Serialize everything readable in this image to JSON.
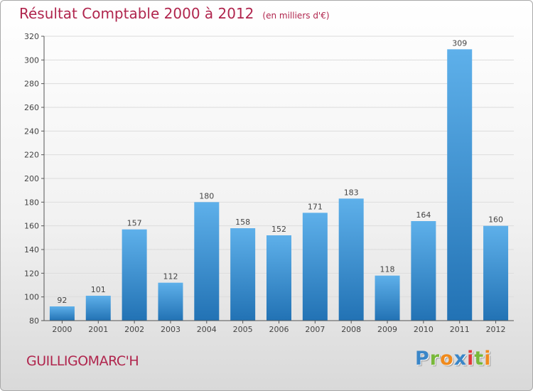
{
  "title": "Résultat Comptable 2000 à 2012",
  "unit_note": "(en milliers d'€)",
  "commune": "GUILLIGOMARC'H",
  "logo": {
    "letters": [
      {
        "ch": "P",
        "color": "#3a86c8"
      },
      {
        "ch": "r",
        "color": "#78b83a"
      },
      {
        "ch": "o",
        "color": "#f08a1c"
      },
      {
        "ch": "x",
        "color": "#3a86c8"
      },
      {
        "ch": "i",
        "color": "#e03a3a"
      },
      {
        "ch": "t",
        "color": "#78b83a"
      },
      {
        "ch": "i",
        "color": "#f08a1c"
      }
    ]
  },
  "colors": {
    "title": "#b0254d",
    "bar_top": "#5eb0ea",
    "bar_bottom": "#2272b4",
    "axis": "#555555",
    "grid": "#dcdcdc"
  },
  "chart_data": {
    "type": "bar",
    "categories": [
      "2000",
      "2001",
      "2002",
      "2003",
      "2004",
      "2005",
      "2006",
      "2007",
      "2008",
      "2009",
      "2010",
      "2011",
      "2012"
    ],
    "values": [
      92,
      101,
      157,
      112,
      180,
      158,
      152,
      171,
      183,
      118,
      164,
      309,
      160
    ],
    "ylim": [
      80,
      320
    ],
    "yticks": [
      80,
      100,
      120,
      140,
      160,
      180,
      200,
      220,
      240,
      260,
      280,
      300,
      320
    ],
    "grid": true
  }
}
